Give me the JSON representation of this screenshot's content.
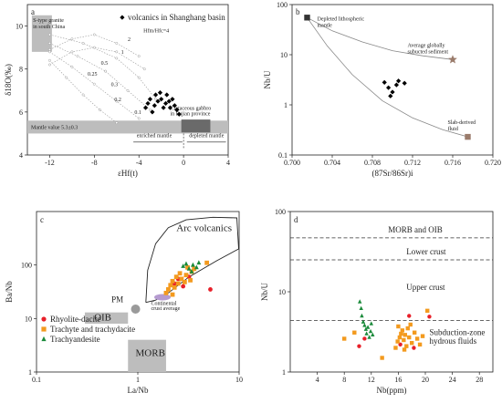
{
  "chart_data": [
    {
      "panel": "a",
      "type": "scatter",
      "xlabel": "εHf(t)",
      "ylabel": "δ18O(‰)",
      "xlim": [
        -14,
        4
      ],
      "ylim": [
        4,
        11
      ],
      "xticks": [
        -12,
        -8,
        -4,
        0,
        4
      ],
      "yticks": [
        4,
        6,
        8,
        10
      ],
      "legend": [
        "volcanics in Shanghang basin"
      ],
      "series": [
        {
          "name": "volcanics in Shanghang basin",
          "marker": "diamond",
          "points": [
            [
              -3.4,
              6.2
            ],
            [
              -3.2,
              6.4
            ],
            [
              -3.0,
              6.6
            ],
            [
              -2.8,
              6.0
            ],
            [
              -2.6,
              6.3
            ],
            [
              -2.5,
              6.8
            ],
            [
              -2.3,
              6.5
            ],
            [
              -2.1,
              6.9
            ],
            [
              -2.0,
              6.6
            ],
            [
              -1.8,
              6.2
            ],
            [
              -1.6,
              6.4
            ],
            [
              -1.5,
              6.8
            ],
            [
              -1.3,
              6.5
            ],
            [
              -1.2,
              6.2
            ],
            [
              -1.0,
              6.6
            ],
            [
              -0.8,
              6.3
            ],
            [
              -0.6,
              6.1
            ],
            [
              -0.4,
              5.9
            ]
          ]
        }
      ],
      "mixing_curves_labels": [
        "Hfm/Hfc=4",
        "2",
        "1",
        "0.5",
        "0.25",
        "0.3",
        "0.2",
        "0.1"
      ],
      "annotations": {
        "s_type": "S-type granite",
        "s_type_2": "in south China",
        "mantle": "Mantle value  5.3±0.3",
        "gabbro": "Cretaceous gabbro",
        "gabbro_2": "in Fujian province",
        "enriched": "enriched mantle",
        "depleted": "depleted mantle"
      }
    },
    {
      "panel": "b",
      "type": "scatter",
      "xlabel": "(87Sr/86Sr)i",
      "ylabel": "Nb/U",
      "xlim": [
        0.7,
        0.72
      ],
      "ylim": [
        0.1,
        100
      ],
      "yscale": "log",
      "xticks": [
        "0.700",
        "0.704",
        "0.708",
        "0.712",
        "0.716",
        "0.720"
      ],
      "yticks": [
        "0.1",
        "1",
        "10",
        "100"
      ],
      "series": [
        {
          "name": "volcanics",
          "marker": "diamond",
          "points": [
            [
              0.7092,
              2.8
            ],
            [
              0.7096,
              2.2
            ],
            [
              0.71,
              1.8
            ],
            [
              0.7098,
              1.5
            ],
            [
              0.7104,
              2.5
            ],
            [
              0.7106,
              3.0
            ],
            [
              0.7112,
              2.7
            ]
          ]
        }
      ],
      "end_members": [
        {
          "label": "Depleted lithospheric",
          "label_2": "mantle",
          "x": 0.7015,
          "y": 55,
          "marker": "square",
          "color": "#333333"
        },
        {
          "label": "Average globally",
          "label_2": "subucted sediment",
          "x": 0.716,
          "y": 8,
          "marker": "star",
          "color": "#9a7b6b"
        },
        {
          "label": "Slab-derived",
          "label_2": "fluid",
          "x": 0.7175,
          "y": 0.23,
          "marker": "square",
          "color": "#9a7b6b"
        }
      ]
    },
    {
      "panel": "c",
      "type": "scatter",
      "xlabel": "La/Nb",
      "ylabel": "Ba/Nb",
      "xscale": "log",
      "yscale": "log",
      "xlim": [
        0.1,
        10
      ],
      "ylim": [
        1,
        1000
      ],
      "xticks": [
        "0.1",
        "1",
        "10"
      ],
      "yticks": [
        "1",
        "10",
        "100"
      ],
      "fields": [
        "Arc volcanics",
        "PM",
        "OIB",
        "MORB",
        "Continental",
        "crust average"
      ],
      "legend": [
        "Rhyolite-dacite",
        "Trachyte and trachydacite",
        "Trachyandesite"
      ],
      "series": [
        {
          "name": "Rhyolite-dacite",
          "color": "#e8202a",
          "marker": "circle",
          "points": [
            [
              2.3,
              45
            ],
            [
              2.5,
              55
            ],
            [
              3.2,
              60
            ],
            [
              5.2,
              35
            ],
            [
              2.8,
              40
            ]
          ]
        },
        {
          "name": "Trachyte and trachydacite",
          "color": "#f39a1e",
          "marker": "square",
          "points": [
            [
              1.9,
              30
            ],
            [
              2.1,
              42
            ],
            [
              2.2,
              50
            ],
            [
              2.4,
              60
            ],
            [
              2.6,
              70
            ],
            [
              2.3,
              38
            ],
            [
              2.7,
              55
            ],
            [
              3.0,
              65
            ],
            [
              2.9,
              48
            ],
            [
              3.4,
              75
            ],
            [
              3.6,
              85
            ],
            [
              2.0,
              35
            ],
            [
              2.5,
              45
            ],
            [
              3.1,
              90
            ],
            [
              4.8,
              110
            ],
            [
              2.2,
              28
            ],
            [
              3.3,
              52
            ]
          ]
        },
        {
          "name": "Trachyandesite",
          "color": "#1a8a3a",
          "marker": "triangle",
          "points": [
            [
              2.8,
              95
            ],
            [
              3.0,
              105
            ],
            [
              3.2,
              85
            ],
            [
              3.5,
              100
            ],
            [
              3.8,
              90
            ],
            [
              4.0,
              110
            ],
            [
              3.4,
              75
            ]
          ]
        }
      ]
    },
    {
      "panel": "d",
      "type": "scatter",
      "xlabel": "Nb(ppm)",
      "ylabel": "Nb/U",
      "xlim": [
        0,
        30
      ],
      "ylim": [
        1,
        100
      ],
      "yscale": "log",
      "xticks": [
        4,
        8,
        12,
        16,
        20,
        24,
        28
      ],
      "yticks": [
        "1",
        "10",
        "100"
      ],
      "reference_lines": [
        {
          "label": "MORB and OIB",
          "y": 47
        },
        {
          "label": "Lower crust",
          "y": 25
        },
        {
          "label": "Upper crust",
          "y": 4.4
        }
      ],
      "annotations": [
        "Subduction-zone",
        "hydrous fluids"
      ],
      "series": [
        {
          "name": "Rhyolite-dacite",
          "color": "#e8202a",
          "marker": "circle",
          "points": [
            [
              10.2,
              2.1
            ],
            [
              11.0,
              2.6
            ],
            [
              16.3,
              2.2
            ],
            [
              17.6,
              5.0
            ],
            [
              18.3,
              2.0
            ],
            [
              20.6,
              4.9
            ]
          ]
        },
        {
          "name": "Trachyte and trachydacite",
          "color": "#f39a1e",
          "marker": "square",
          "points": [
            [
              8.0,
              2.6
            ],
            [
              9.5,
              3.1
            ],
            [
              13.6,
              1.5
            ],
            [
              15.6,
              2.0
            ],
            [
              15.9,
              2.4
            ],
            [
              16.2,
              2.7
            ],
            [
              16.4,
              3.0
            ],
            [
              16.6,
              3.3
            ],
            [
              16.8,
              2.5
            ],
            [
              17.0,
              2.9
            ],
            [
              17.2,
              2.1
            ],
            [
              17.4,
              3.5
            ],
            [
              17.6,
              2.7
            ],
            [
              17.8,
              3.9
            ],
            [
              18.0,
              2.3
            ],
            [
              18.4,
              3.1
            ],
            [
              18.8,
              2.6
            ],
            [
              19.2,
              2.2
            ],
            [
              16.0,
              3.7
            ],
            [
              16.9,
              1.9
            ],
            [
              19.6,
              2.8
            ],
            [
              20.3,
              5.8
            ]
          ]
        },
        {
          "name": "Trachyandesite",
          "color": "#1a8a3a",
          "marker": "triangle",
          "points": [
            [
              10.3,
              7.5
            ],
            [
              10.5,
              6.2
            ],
            [
              10.6,
              5.0
            ],
            [
              10.8,
              4.2
            ],
            [
              11.0,
              3.8
            ],
            [
              11.2,
              3.4
            ],
            [
              11.3,
              3.0
            ],
            [
              11.5,
              3.6
            ],
            [
              11.7,
              2.7
            ],
            [
              11.9,
              3.2
            ],
            [
              12.0,
              4.0
            ],
            [
              12.2,
              2.9
            ]
          ]
        }
      ]
    }
  ],
  "panels": {
    "a": {
      "tag": "a"
    },
    "b": {
      "tag": "b"
    },
    "c": {
      "tag": "c"
    },
    "d": {
      "tag": "d"
    }
  }
}
